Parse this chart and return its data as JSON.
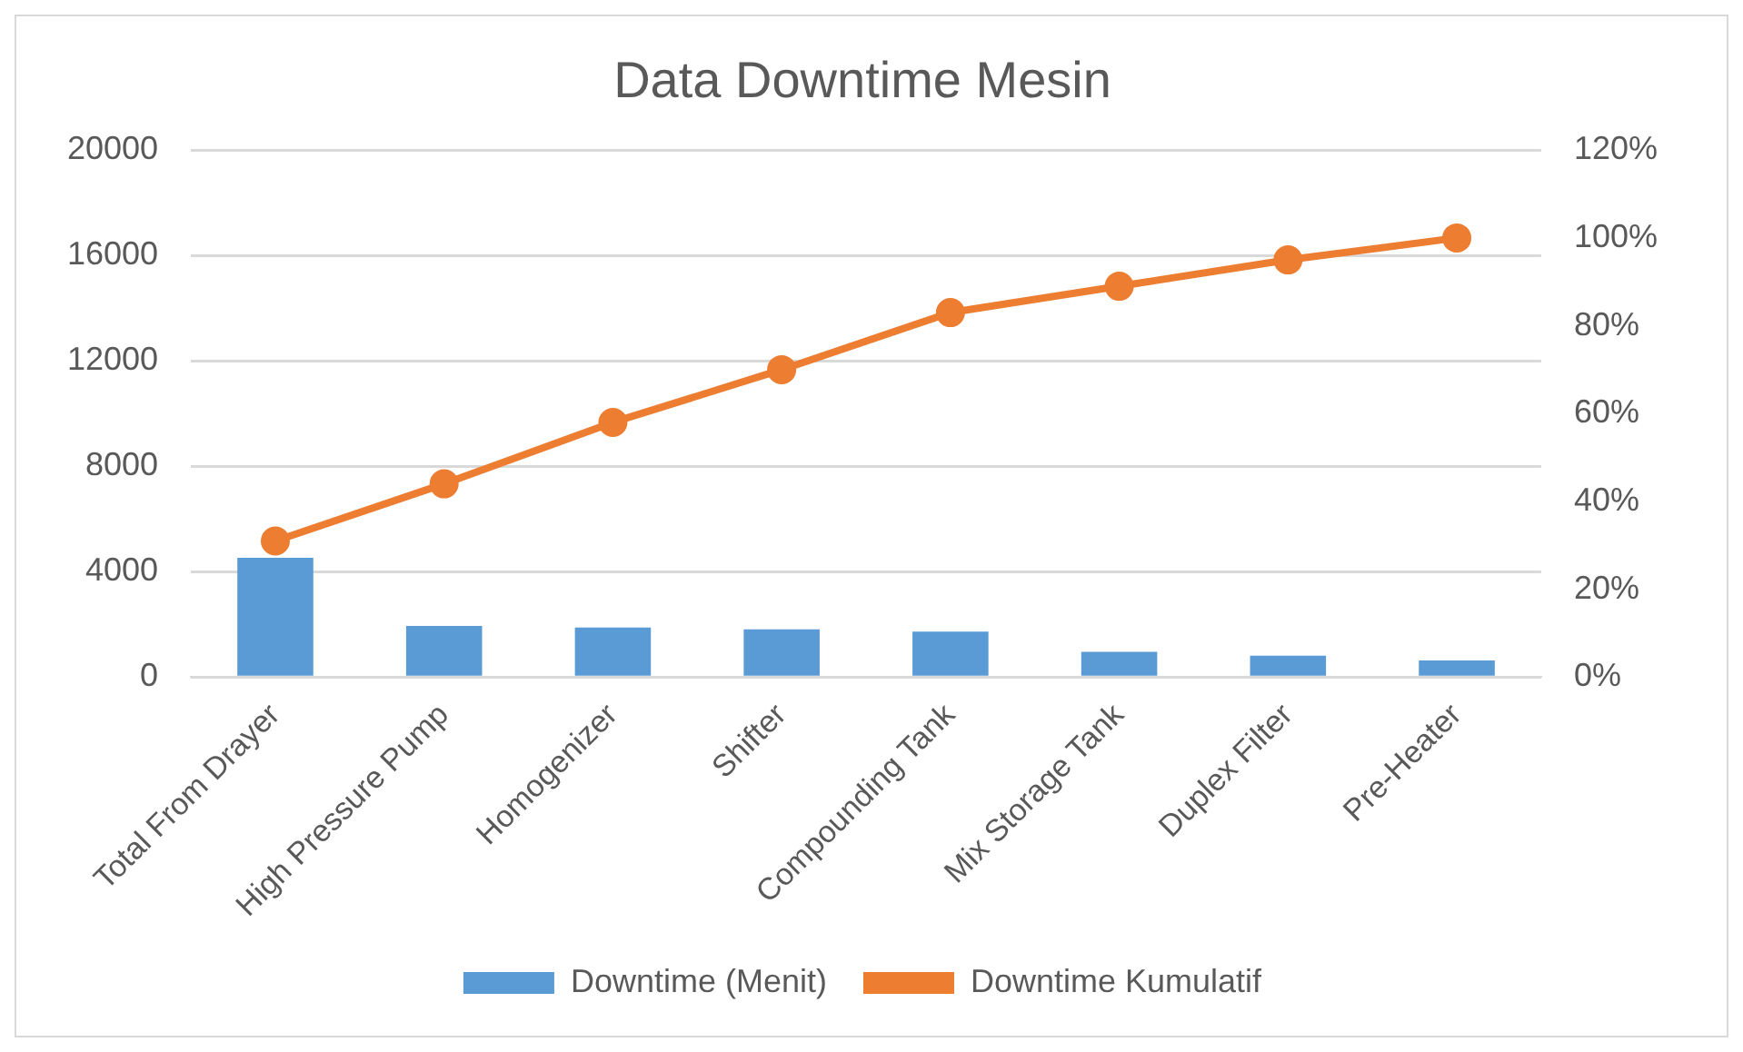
{
  "chart_data": {
    "type": "bar",
    "title": "Data Downtime Mesin",
    "categories": [
      "Total From Drayer",
      "High Pressure Pump",
      "Homogenizer",
      "Shifter",
      "Compounding Tank",
      "Mix Storage Tank",
      "Duplex Filter",
      "Pre-Heater"
    ],
    "series": [
      {
        "name": "Downtime (Menit)",
        "color": "#5b9bd5",
        "values": [
          4530,
          1940,
          1880,
          1810,
          1730,
          960,
          810,
          630
        ]
      },
      {
        "name": "Downtime Kumulatif",
        "type": "line",
        "axis": "y2",
        "color": "#ed7d31",
        "marker": "circle",
        "values": [
          31,
          44,
          58,
          70,
          83,
          89,
          95,
          100
        ]
      }
    ],
    "ylim": [
      0,
      20000
    ],
    "yticks": [
      0,
      4000,
      8000,
      12000,
      16000,
      20000
    ],
    "y2lim": [
      0,
      120
    ],
    "y2ticks": [
      {
        "value": 0,
        "label": "0%"
      },
      {
        "value": 20,
        "label": "20%"
      },
      {
        "value": 40,
        "label": "40%"
      },
      {
        "value": 60,
        "label": "60%"
      },
      {
        "value": 80,
        "label": "80%"
      },
      {
        "value": 100,
        "label": "100%"
      },
      {
        "value": 120,
        "label": "120%"
      }
    ],
    "grid": "y",
    "legend": "bottom"
  }
}
